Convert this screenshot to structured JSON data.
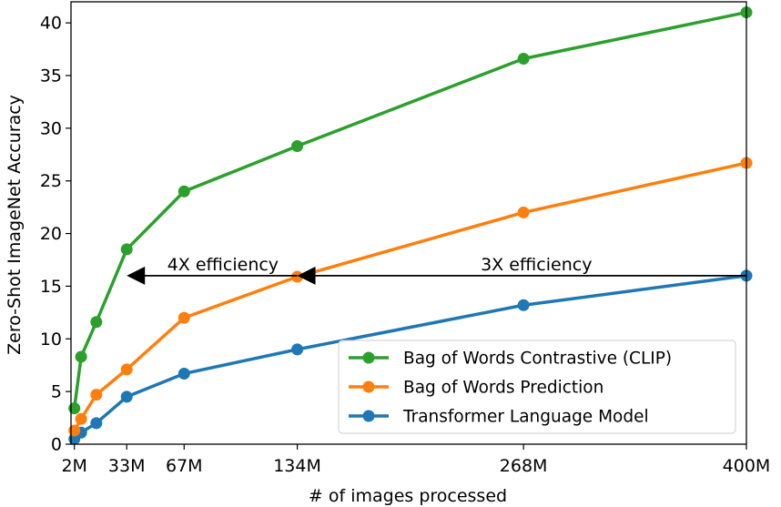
{
  "chart_data": {
    "type": "line",
    "xlabel": "# of images processed",
    "ylabel": "Zero-Shot ImageNet Accuracy",
    "xlim": [
      0,
      400
    ],
    "ylim": [
      0,
      42
    ],
    "x_ticks": [
      {
        "value": 2,
        "label": "2M"
      },
      {
        "value": 33,
        "label": "33M"
      },
      {
        "value": 67,
        "label": "67M"
      },
      {
        "value": 134,
        "label": "134M"
      },
      {
        "value": 268,
        "label": "268M"
      },
      {
        "value": 400,
        "label": "400M"
      }
    ],
    "y_ticks": [
      0,
      5,
      10,
      15,
      20,
      25,
      30,
      35,
      40
    ],
    "legend_position": "lower-right",
    "series": [
      {
        "name": "Bag of Words Contrastive (CLIP)",
        "color": "#2ca02c",
        "x": [
          2,
          6,
          15,
          33,
          67,
          134,
          268,
          400
        ],
        "y": [
          3.4,
          8.3,
          11.6,
          18.5,
          24.0,
          28.3,
          36.6,
          41.0
        ]
      },
      {
        "name": "Bag of Words Prediction",
        "color": "#ff7f0e",
        "x": [
          2,
          6,
          15,
          33,
          67,
          134,
          268,
          400
        ],
        "y": [
          1.3,
          2.4,
          4.7,
          7.1,
          12.0,
          15.9,
          22.0,
          26.7
        ]
      },
      {
        "name": "Transformer Language Model",
        "color": "#1f77b4",
        "x": [
          2,
          6,
          15,
          33,
          67,
          134,
          268,
          400
        ],
        "y": [
          0.5,
          1.1,
          2.0,
          4.5,
          6.7,
          9.0,
          13.2,
          16.0
        ]
      }
    ],
    "annotations": [
      {
        "text": "4X efficiency",
        "arrow_from_x": 134,
        "arrow_to_x": 33,
        "y": 16.0
      },
      {
        "text": "3X efficiency",
        "arrow_from_x": 400,
        "arrow_to_x": 134,
        "y": 16.0
      }
    ]
  }
}
